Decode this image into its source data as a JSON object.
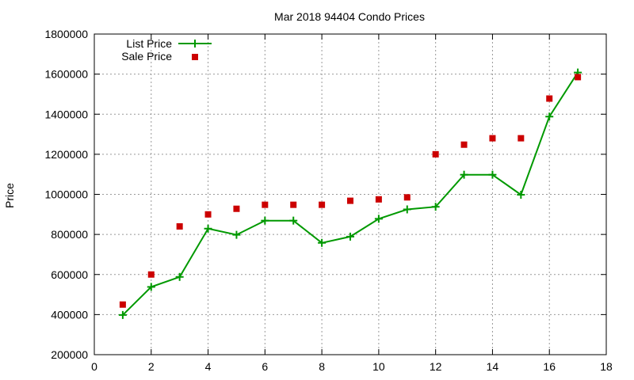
{
  "chart_data": {
    "type": "line",
    "title": "Mar 2018 94404 Condo Prices",
    "xlabel": "",
    "ylabel": "Price",
    "xlim": [
      0,
      18
    ],
    "ylim": [
      200000,
      1800000
    ],
    "xticks": [
      "0",
      "2",
      "4",
      "6",
      "8",
      "10",
      "12",
      "14",
      "16",
      "18"
    ],
    "yticks": [
      "200000",
      "400000",
      "600000",
      "800000",
      "1000000",
      "1200000",
      "1400000",
      "1600000",
      "1800000"
    ],
    "grid": true,
    "legend_position": "top-left",
    "series": [
      {
        "name": "List Price",
        "style": "line+cross",
        "color": "#009900",
        "x": [
          1,
          2,
          3,
          4,
          5,
          6,
          7,
          8,
          9,
          10,
          11,
          12,
          13,
          14,
          15,
          16,
          17
        ],
        "y": [
          398000,
          538000,
          588000,
          829000,
          798000,
          869000,
          869000,
          758000,
          789000,
          878000,
          925000,
          938000,
          1098000,
          1098000,
          998000,
          1388000,
          1608000
        ]
      },
      {
        "name": "Sale Price",
        "style": "square",
        "color": "#cc0000",
        "x": [
          1,
          2,
          3,
          4,
          5,
          6,
          7,
          8,
          9,
          10,
          11,
          12,
          13,
          14,
          15,
          16,
          17
        ],
        "y": [
          450000,
          600000,
          840000,
          900000,
          928000,
          948000,
          948000,
          948000,
          968000,
          975000,
          985000,
          1200000,
          1248000,
          1280000,
          1280000,
          1478000,
          1585000
        ]
      }
    ]
  }
}
